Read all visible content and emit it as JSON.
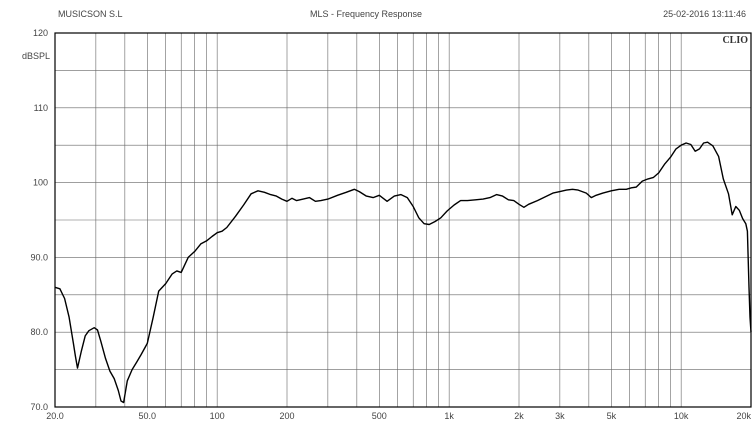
{
  "header": {
    "left": "MUSICSON S.L",
    "center": "MLS - Frequency Response",
    "right": "25-02-2016 13:11:46"
  },
  "brand": "CLIO",
  "chart_data": {
    "type": "line",
    "title": "MLS - Frequency Response",
    "ylabel": "dBSPL",
    "xlabel": "",
    "xscale": "log",
    "xlim": [
      20,
      20000
    ],
    "ylim": [
      70,
      120
    ],
    "grid": true,
    "y_ticks": [
      {
        "value": 70,
        "label": "70.0"
      },
      {
        "value": 80,
        "label": "80.0"
      },
      {
        "value": 90,
        "label": "90.0"
      },
      {
        "value": 100,
        "label": "100"
      },
      {
        "value": 110,
        "label": "110"
      },
      {
        "value": 120,
        "label": "120"
      }
    ],
    "x_ticks": [
      {
        "value": 20,
        "label": "20.0"
      },
      {
        "value": 50,
        "label": "50.0"
      },
      {
        "value": 100,
        "label": "100"
      },
      {
        "value": 200,
        "label": "200"
      },
      {
        "value": 500,
        "label": "500"
      },
      {
        "value": 1000,
        "label": "1k"
      },
      {
        "value": 2000,
        "label": "2k"
      },
      {
        "value": 5000,
        "label": "5k"
      },
      {
        "value": 10000,
        "label": "10k"
      },
      {
        "value": 20000,
        "label": "20k"
      }
    ],
    "minor_label_tick": {
      "value": 3000,
      "label": "3k"
    },
    "series": [
      {
        "color": "#000000",
        "points": [
          [
            20,
            86
          ],
          [
            21,
            85.8
          ],
          [
            22,
            84.5
          ],
          [
            23,
            82
          ],
          [
            24,
            78.5
          ],
          [
            24.5,
            76.8
          ],
          [
            25,
            75.2
          ],
          [
            26,
            77.5
          ],
          [
            27,
            79.5
          ],
          [
            28,
            80.2
          ],
          [
            29.5,
            80.6
          ],
          [
            30.5,
            80.3
          ],
          [
            31.5,
            78.8
          ],
          [
            33,
            76.5
          ],
          [
            34.5,
            74.8
          ],
          [
            36,
            73.8
          ],
          [
            37.5,
            72.2
          ],
          [
            38.5,
            70.8
          ],
          [
            39.5,
            70.6
          ],
          [
            41,
            73.5
          ],
          [
            43,
            75
          ],
          [
            45,
            76
          ],
          [
            47,
            77
          ],
          [
            50,
            78.5
          ],
          [
            53,
            82
          ],
          [
            56,
            85.5
          ],
          [
            60,
            86.5
          ],
          [
            64,
            87.8
          ],
          [
            67,
            88.2
          ],
          [
            70,
            88
          ],
          [
            75,
            90
          ],
          [
            80,
            90.8
          ],
          [
            85,
            91.8
          ],
          [
            90,
            92.2
          ],
          [
            95,
            92.8
          ],
          [
            100,
            93.3
          ],
          [
            105,
            93.5
          ],
          [
            110,
            94
          ],
          [
            120,
            95.5
          ],
          [
            130,
            97
          ],
          [
            140,
            98.5
          ],
          [
            150,
            98.9
          ],
          [
            160,
            98.7
          ],
          [
            170,
            98.4
          ],
          [
            180,
            98.2
          ],
          [
            190,
            97.8
          ],
          [
            200,
            97.5
          ],
          [
            210,
            97.9
          ],
          [
            220,
            97.6
          ],
          [
            235,
            97.8
          ],
          [
            250,
            98
          ],
          [
            265,
            97.5
          ],
          [
            280,
            97.6
          ],
          [
            300,
            97.8
          ],
          [
            330,
            98.3
          ],
          [
            360,
            98.7
          ],
          [
            390,
            99.1
          ],
          [
            410,
            98.8
          ],
          [
            440,
            98.2
          ],
          [
            470,
            98
          ],
          [
            500,
            98.3
          ],
          [
            540,
            97.5
          ],
          [
            580,
            98.2
          ],
          [
            620,
            98.4
          ],
          [
            660,
            98
          ],
          [
            700,
            96.8
          ],
          [
            740,
            95.3
          ],
          [
            780,
            94.5
          ],
          [
            820,
            94.4
          ],
          [
            870,
            94.8
          ],
          [
            920,
            95.3
          ],
          [
            980,
            96.2
          ],
          [
            1050,
            97
          ],
          [
            1120,
            97.6
          ],
          [
            1200,
            97.6
          ],
          [
            1300,
            97.7
          ],
          [
            1400,
            97.8
          ],
          [
            1500,
            98
          ],
          [
            1600,
            98.4
          ],
          [
            1700,
            98.2
          ],
          [
            1800,
            97.7
          ],
          [
            1900,
            97.6
          ],
          [
            2000,
            97.1
          ],
          [
            2100,
            96.7
          ],
          [
            2200,
            97.1
          ],
          [
            2400,
            97.6
          ],
          [
            2600,
            98.1
          ],
          [
            2800,
            98.6
          ],
          [
            3000,
            98.8
          ],
          [
            3200,
            99
          ],
          [
            3400,
            99.1
          ],
          [
            3600,
            99
          ],
          [
            3900,
            98.6
          ],
          [
            4100,
            98
          ],
          [
            4300,
            98.3
          ],
          [
            4600,
            98.6
          ],
          [
            5000,
            98.9
          ],
          [
            5400,
            99.1
          ],
          [
            5800,
            99.1
          ],
          [
            6100,
            99.3
          ],
          [
            6400,
            99.4
          ],
          [
            6800,
            100.2
          ],
          [
            7200,
            100.5
          ],
          [
            7600,
            100.7
          ],
          [
            8000,
            101.3
          ],
          [
            8500,
            102.5
          ],
          [
            9000,
            103.4
          ],
          [
            9500,
            104.5
          ],
          [
            10000,
            105
          ],
          [
            10500,
            105.3
          ],
          [
            11000,
            105.1
          ],
          [
            11500,
            104.2
          ],
          [
            12000,
            104.5
          ],
          [
            12500,
            105.3
          ],
          [
            13000,
            105.4
          ],
          [
            13700,
            104.9
          ],
          [
            14500,
            103.5
          ],
          [
            15200,
            100.5
          ],
          [
            16000,
            98.5
          ],
          [
            16600,
            95.7
          ],
          [
            17200,
            96.8
          ],
          [
            17800,
            96.3
          ],
          [
            18400,
            95.2
          ],
          [
            19000,
            94.5
          ],
          [
            19300,
            93.5
          ],
          [
            19600,
            86
          ],
          [
            19800,
            82
          ],
          [
            20000,
            80
          ]
        ]
      }
    ]
  }
}
